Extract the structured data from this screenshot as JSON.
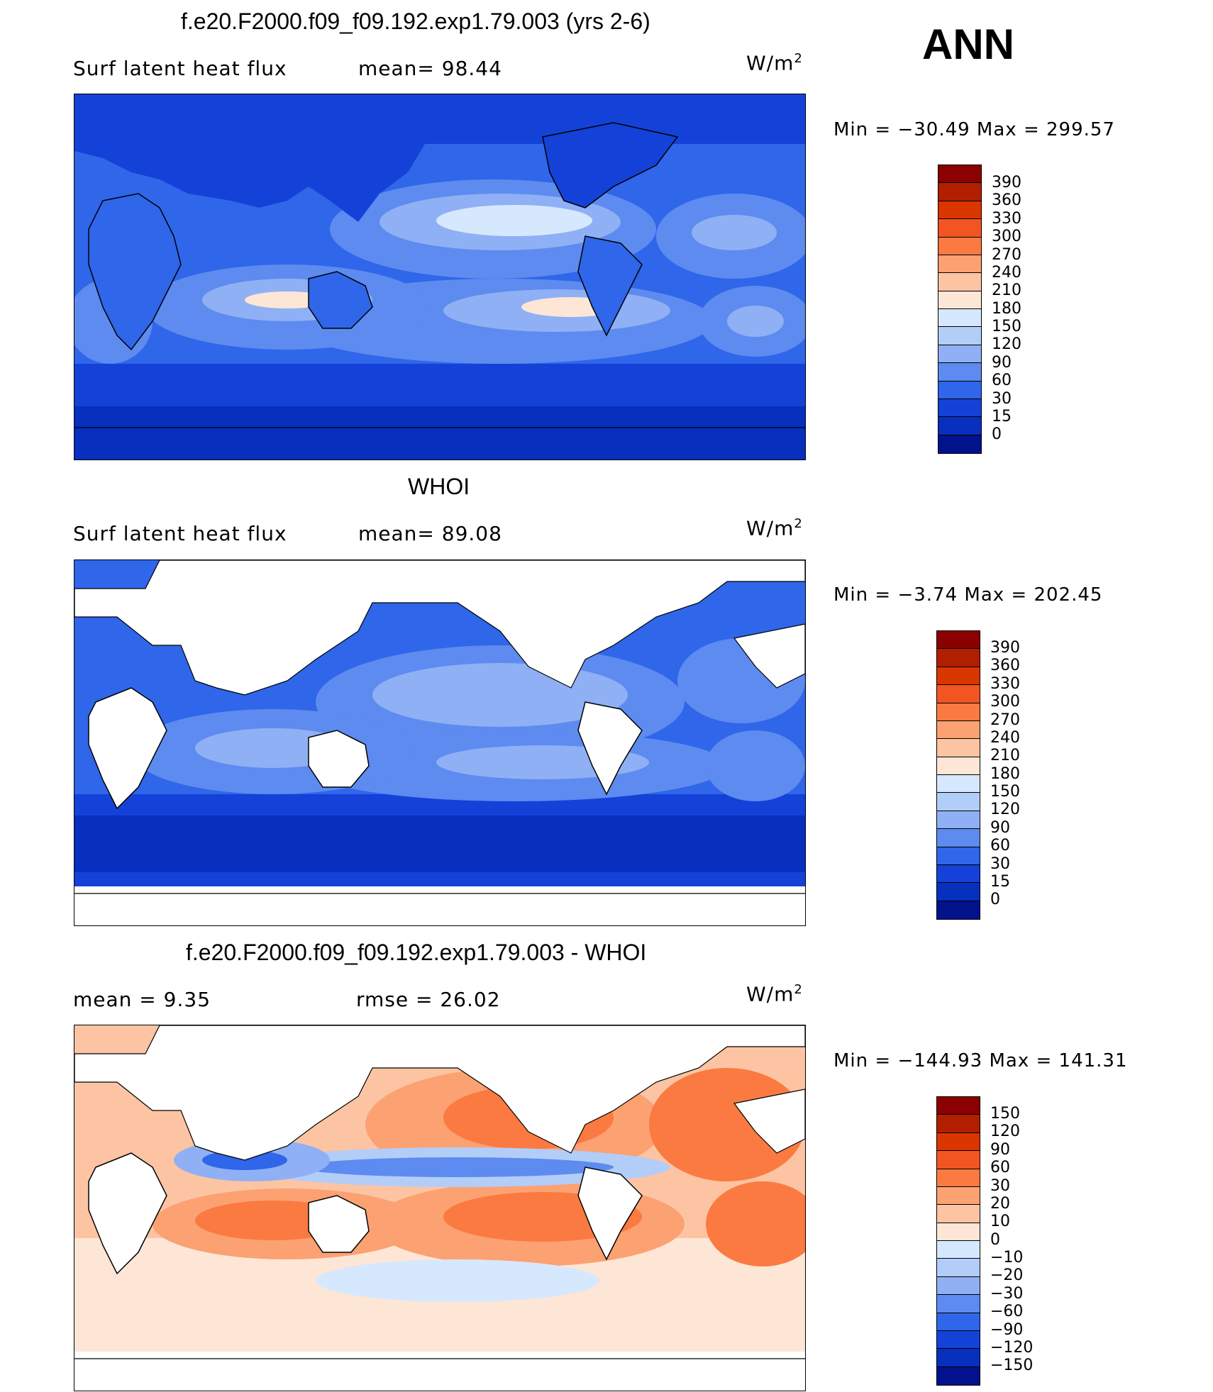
{
  "season": "ANN",
  "panels": [
    {
      "title": "f.e20.F2000.f09_f09.192.exp1.79.003 (yrs 2-6)",
      "left_text": "Surf  latent  heat  flux",
      "middle_text": "mean=   98.44",
      "units": "W/m",
      "units_exp": "2",
      "minmax": "Min  =  −30.49  Max  =  299.57",
      "colorbar_ticks": [
        "390",
        "360",
        "330",
        "300",
        "270",
        "240",
        "210",
        "180",
        "150",
        "120",
        "90",
        "60",
        "30",
        "15",
        "0"
      ],
      "colorbar_colors": [
        "#8b0000",
        "#b21f00",
        "#d93600",
        "#f25522",
        "#fb7a42",
        "#fca172",
        "#fdc4a3",
        "#fde6d6",
        "#d6e8fd",
        "#b3cdf9",
        "#8fb0f5",
        "#5d8bef",
        "#2f66ea",
        "#1442d8",
        "#0630bd",
        "#02128c"
      ],
      "land_masked": false
    },
    {
      "title": "WHOI",
      "left_text": "Surf  latent  heat  flux",
      "middle_text": "mean=   89.08",
      "units": "W/m",
      "units_exp": "2",
      "minmax": "Min  =   −3.74  Max  =  202.45",
      "colorbar_ticks": [
        "390",
        "360",
        "330",
        "300",
        "270",
        "240",
        "210",
        "180",
        "150",
        "120",
        "90",
        "60",
        "30",
        "15",
        "0"
      ],
      "colorbar_colors": [
        "#8b0000",
        "#b21f00",
        "#d93600",
        "#f25522",
        "#fb7a42",
        "#fca172",
        "#fdc4a3",
        "#fde6d6",
        "#d6e8fd",
        "#b3cdf9",
        "#8fb0f5",
        "#5d8bef",
        "#2f66ea",
        "#1442d8",
        "#0630bd",
        "#02128c"
      ],
      "land_masked": true
    },
    {
      "title": "f.e20.F2000.f09_f09.192.exp1.79.003 - WHOI",
      "left_text": "mean  =     9.35",
      "middle_text": "rmse  =    26.02",
      "units": "W/m",
      "units_exp": "2",
      "minmax": "Min  =  −144.93  Max  =  141.31",
      "colorbar_ticks": [
        "150",
        "120",
        "90",
        "60",
        "30",
        "20",
        "10",
        "0",
        "−10",
        "−20",
        "−30",
        "−60",
        "−90",
        "−120",
        "−150"
      ],
      "colorbar_colors": [
        "#8b0000",
        "#b21f00",
        "#d93600",
        "#f25522",
        "#fb7a42",
        "#fca172",
        "#fdc4a3",
        "#fde6d6",
        "#d6e8fd",
        "#b3cdf9",
        "#8fb0f5",
        "#5d8bef",
        "#2f66ea",
        "#1442d8",
        "#0630bd",
        "#02128c"
      ],
      "land_masked": true
    }
  ]
}
